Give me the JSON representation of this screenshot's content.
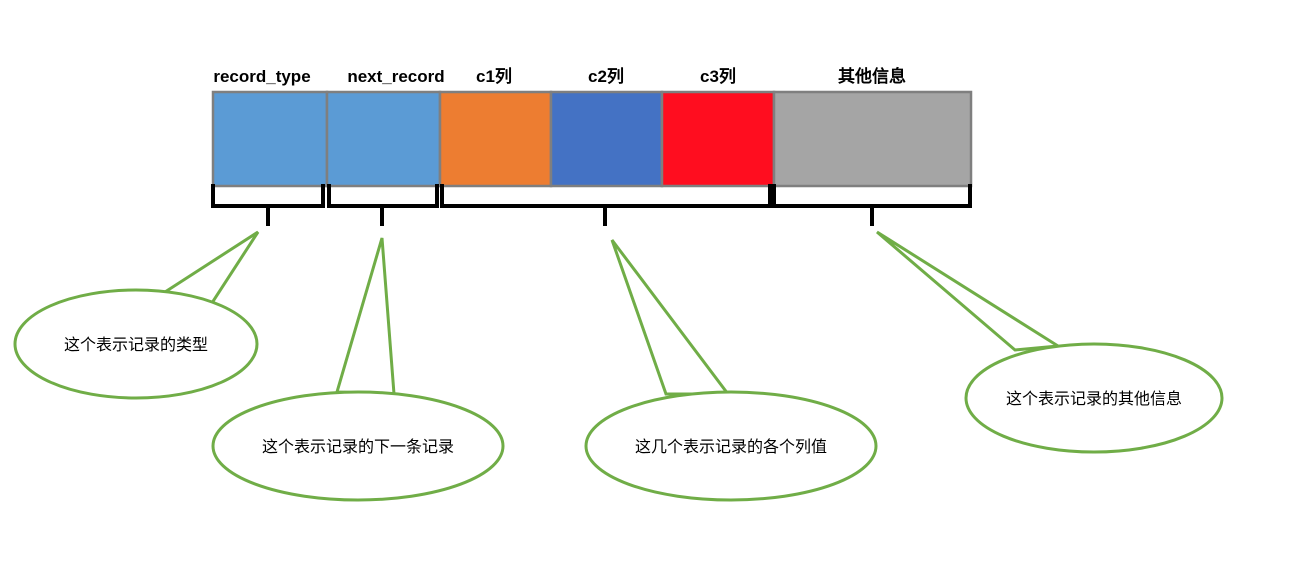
{
  "fields": [
    {
      "label": "record_type",
      "color": "#5b9bd5"
    },
    {
      "label": "next_record",
      "color": "#5b9bd5"
    },
    {
      "label": "c1列",
      "color": "#ed7d31"
    },
    {
      "label": "c2列",
      "color": "#4472c4"
    },
    {
      "label": "c3列",
      "color": "#ff0d1f"
    },
    {
      "label": "其他信息",
      "color": "#a5a5a5"
    }
  ],
  "callouts": [
    {
      "text": "这个表示记录的类型"
    },
    {
      "text": "这个表示记录的下一条记录"
    },
    {
      "text": "这几个表示记录的各个列值"
    },
    {
      "text": "这个表示记录的其他信息"
    }
  ],
  "colors": {
    "cell_border": "#7f7f7f",
    "callout_border": "#70ad47",
    "brace": "#000000"
  }
}
